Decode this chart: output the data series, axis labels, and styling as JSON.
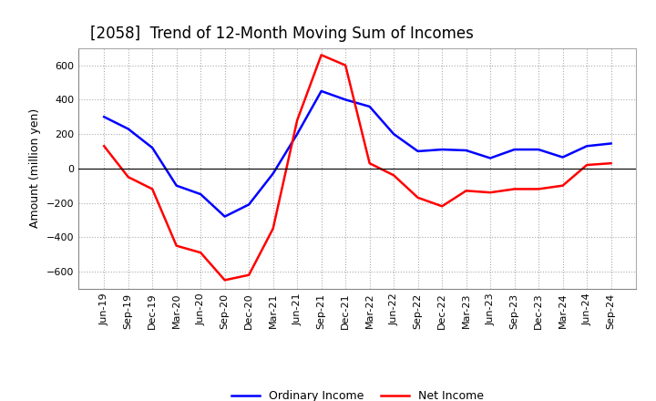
{
  "title": "[2058]  Trend of 12-Month Moving Sum of Incomes",
  "ylabel": "Amount (million yen)",
  "x_labels": [
    "Jun-19",
    "Sep-19",
    "Dec-19",
    "Mar-20",
    "Jun-20",
    "Sep-20",
    "Dec-20",
    "Mar-21",
    "Jun-21",
    "Sep-21",
    "Dec-21",
    "Mar-22",
    "Jun-22",
    "Sep-22",
    "Dec-22",
    "Mar-23",
    "Jun-23",
    "Sep-23",
    "Dec-23",
    "Mar-24",
    "Jun-24",
    "Sep-24"
  ],
  "ordinary_income": [
    300,
    230,
    120,
    -100,
    -150,
    -280,
    -210,
    -30,
    200,
    450,
    400,
    360,
    200,
    100,
    110,
    105,
    60,
    110,
    110,
    65,
    130,
    145
  ],
  "net_income": [
    130,
    -50,
    -120,
    -450,
    -490,
    -650,
    -620,
    -350,
    280,
    660,
    600,
    30,
    -40,
    -170,
    -220,
    -130,
    -140,
    -120,
    -120,
    -100,
    20,
    30
  ],
  "ordinary_color": "#0000FF",
  "net_color": "#FF0000",
  "ylim": [
    -700,
    700
  ],
  "yticks": [
    -600,
    -400,
    -200,
    0,
    200,
    400,
    600
  ],
  "background_color": "#FFFFFF",
  "grid_color": "#AAAAAA",
  "title_fontsize": 12,
  "label_fontsize": 9,
  "tick_fontsize": 8,
  "legend_fontsize": 9,
  "linewidth": 1.8
}
